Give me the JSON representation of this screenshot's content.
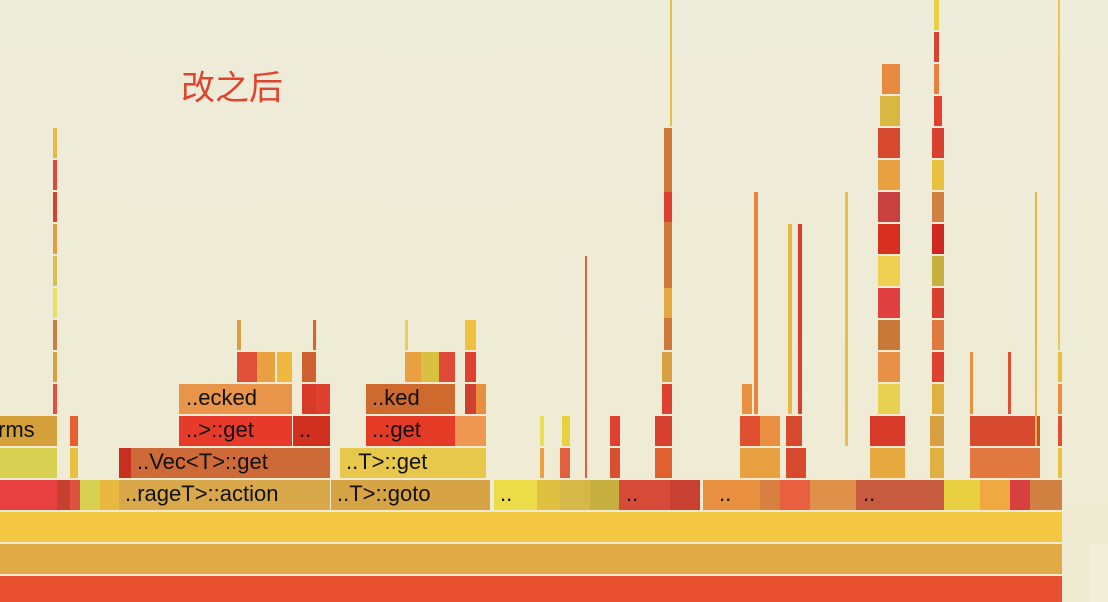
{
  "annotation": "改之后",
  "frames": [
    {
      "label": "rms"
    },
    {
      "label": "..ecked"
    },
    {
      "label": "..>::get"
    },
    {
      "label": ".."
    },
    {
      "label": "..ked"
    },
    {
      "label": "..:get"
    },
    {
      "label": "..Vec<T>::get"
    },
    {
      "label": "..T>::get"
    },
    {
      "label": "..rageT>::action"
    },
    {
      "label": "..T>::goto"
    },
    {
      "label": ".."
    },
    {
      "label": ".."
    },
    {
      "label": ".."
    },
    {
      "label": ".."
    }
  ]
}
